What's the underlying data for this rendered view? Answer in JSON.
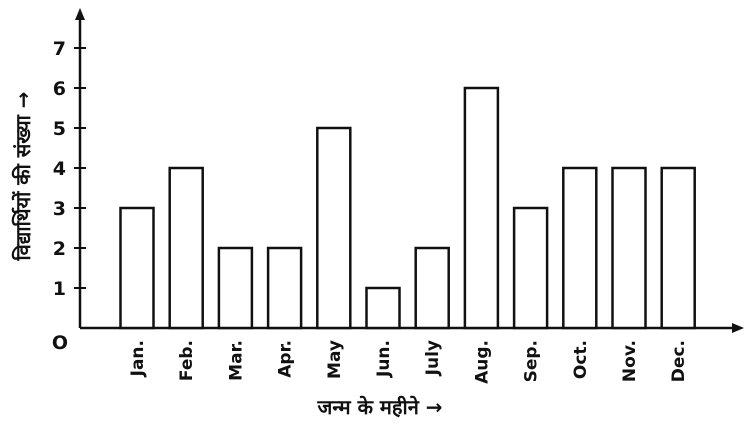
{
  "chart_data": {
    "type": "bar",
    "categories": [
      "Jan.",
      "Feb.",
      "Mar.",
      "Apr.",
      "May",
      "Jun.",
      "July",
      "Aug.",
      "Sep.",
      "Oct.",
      "Nov.",
      "Dec."
    ],
    "values": [
      3,
      4,
      2,
      2,
      5,
      1,
      2,
      6,
      3,
      4,
      4,
      4
    ],
    "title": "",
    "xlabel": "जन्म के महीने →",
    "ylabel": "विद्यार्थियों की संख्या →",
    "origin_label": "O",
    "yticks": [
      "1",
      "2",
      "3",
      "4",
      "5",
      "6",
      "7"
    ],
    "ylim": [
      0,
      7
    ],
    "grid": false,
    "bar_fill": "#ffffff",
    "bar_stroke": "#111111"
  }
}
